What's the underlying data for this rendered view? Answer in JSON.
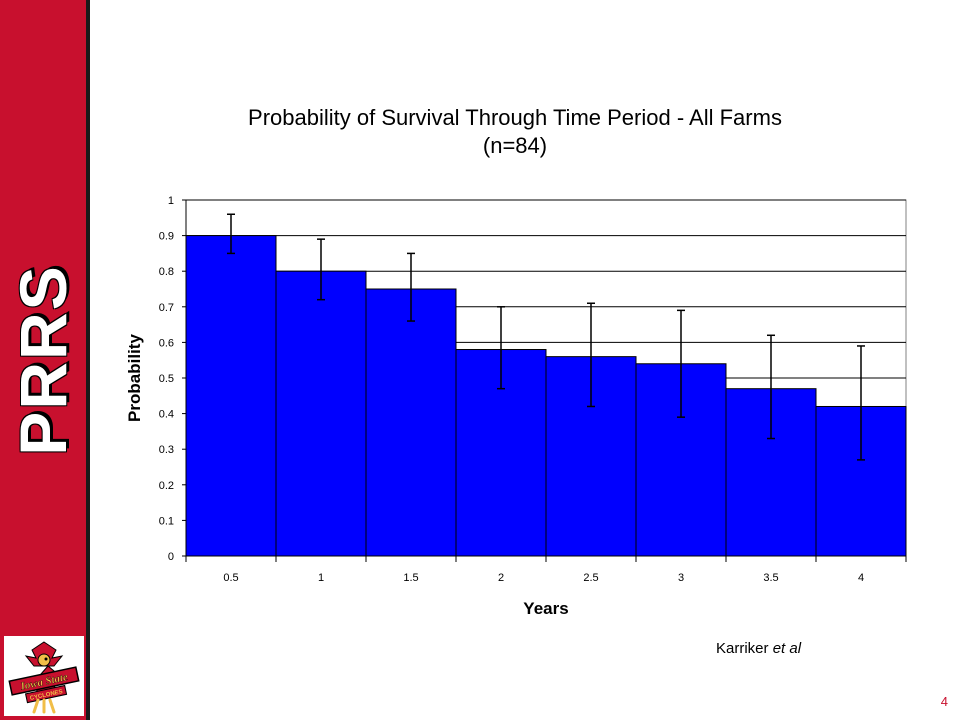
{
  "slide": {
    "side_title": "PRRS",
    "logo_text_line1": "Iowa State",
    "logo_text_line2": "CYCLONES",
    "credit_author": "Karriker",
    "credit_suffix": "et al",
    "page_number": "4",
    "colors": {
      "sidebar": "#c8102e",
      "bar": "#0000ff",
      "page_number": "#c8102e"
    }
  },
  "chart_data": {
    "type": "bar",
    "title_line1": "Probability of Survival Through Time Period - All Farms",
    "title_line2": "(n=84)",
    "xlabel": "Years",
    "ylabel": "Probability",
    "categories": [
      "0.5",
      "1",
      "1.5",
      "2",
      "2.5",
      "3",
      "3.5",
      "4"
    ],
    "series": [
      {
        "values": [
          0.9,
          0.8,
          0.75,
          0.58,
          0.56,
          0.54,
          0.47,
          0.42
        ],
        "error_low": [
          0.85,
          0.72,
          0.66,
          0.47,
          0.42,
          0.39,
          0.33,
          0.27
        ],
        "error_high": [
          0.96,
          0.89,
          0.85,
          0.7,
          0.71,
          0.69,
          0.62,
          0.59
        ],
        "color": "#0000ff"
      }
    ],
    "ylim": [
      0,
      1
    ],
    "yticks": [
      "0",
      "0.1",
      "0.2",
      "0.3",
      "0.4",
      "0.5",
      "0.6",
      "0.7",
      "0.8",
      "0.9",
      "1"
    ],
    "grid": true,
    "legend": "none"
  }
}
